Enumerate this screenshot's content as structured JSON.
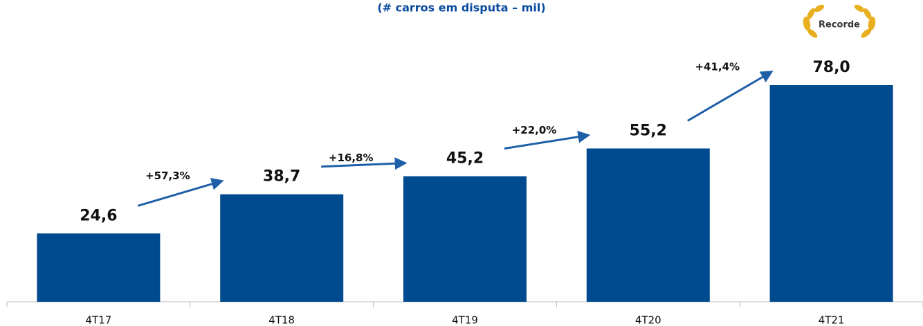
{
  "chart_data": {
    "type": "bar",
    "title": "(# carros em disputa – mil)",
    "categories": [
      "4T17",
      "4T18",
      "4T19",
      "4T20",
      "4T21"
    ],
    "values": [
      24.6,
      38.7,
      45.2,
      55.2,
      78.0
    ],
    "value_labels": [
      "24,6",
      "38,7",
      "45,2",
      "55,2",
      "78,0"
    ],
    "color": "#004a8f",
    "growth_labels": [
      "+57,3%",
      "+16,8%",
      "+22,0%",
      "+41,4%"
    ],
    "badge": "Recorde"
  }
}
